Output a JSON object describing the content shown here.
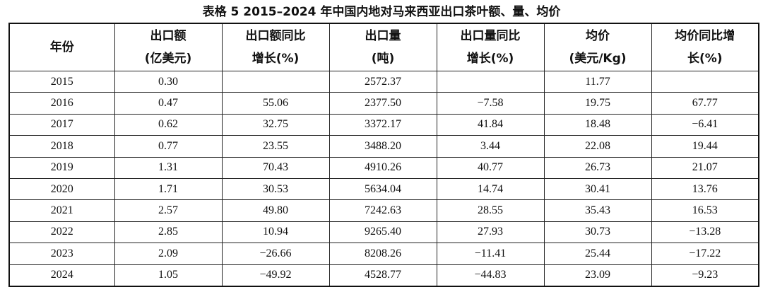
{
  "caption": "表格 5 2015–2024 年中国内地对马来西亚出口茶叶额、量、均价",
  "table": {
    "header": [
      [
        "年份"
      ],
      [
        "出口额",
        "(亿美元)"
      ],
      [
        "出口额同比",
        "增长(%)"
      ],
      [
        "出口量",
        "(吨)"
      ],
      [
        "出口量同比",
        "增长(%)"
      ],
      [
        "均价",
        "(美元/Kg)"
      ],
      [
        "均价同比增",
        "长(%)"
      ]
    ],
    "rows": [
      [
        "2015",
        "0.30",
        null,
        "2572.37",
        null,
        "11.77",
        null
      ],
      [
        "2016",
        "0.47",
        "55.06",
        "2377.50",
        "−7.58",
        "19.75",
        "67.77"
      ],
      [
        "2017",
        "0.62",
        "32.75",
        "3372.17",
        "41.84",
        "18.48",
        "−6.41"
      ],
      [
        "2018",
        "0.77",
        "23.55",
        "3488.20",
        "3.44",
        "22.08",
        "19.44"
      ],
      [
        "2019",
        "1.31",
        "70.43",
        "4910.26",
        "40.77",
        "26.73",
        "21.07"
      ],
      [
        "2020",
        "1.71",
        "30.53",
        "5634.04",
        "14.74",
        "30.41",
        "13.76"
      ],
      [
        "2021",
        "2.57",
        "49.80",
        "7242.63",
        "28.55",
        "35.43",
        "16.53"
      ],
      [
        "2022",
        "2.85",
        "10.94",
        "9265.40",
        "27.93",
        "30.73",
        "−13.28"
      ],
      [
        "2023",
        "2.09",
        "−26.66",
        "8208.26",
        "−11.41",
        "25.44",
        "−17.22"
      ],
      [
        "2024",
        "1.05",
        "−49.92",
        "4528.77",
        "−44.83",
        "23.09",
        "−9.23"
      ]
    ]
  }
}
